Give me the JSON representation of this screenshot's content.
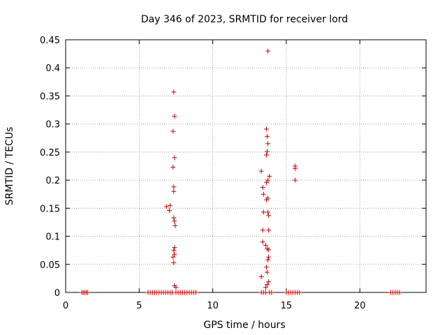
{
  "chart_data": {
    "type": "scatter",
    "title": "Day 346 of 2023, SRMTID for receiver lord",
    "xlabel": "GPS time / hours",
    "ylabel": "SRMTID / TECUs",
    "xlim": [
      0,
      24.5
    ],
    "ylim": [
      0,
      0.45
    ],
    "xticks": [
      {
        "value": 0,
        "label": "0"
      },
      {
        "value": 5,
        "label": "5"
      },
      {
        "value": 10,
        "label": "10"
      },
      {
        "value": 15,
        "label": "15"
      },
      {
        "value": 20,
        "label": "20"
      }
    ],
    "yticks": [
      {
        "value": 0,
        "label": "0"
      },
      {
        "value": 0.05,
        "label": "0.05"
      },
      {
        "value": 0.1,
        "label": "0.1"
      },
      {
        "value": 0.15,
        "label": "0.15"
      },
      {
        "value": 0.2,
        "label": "0.2"
      },
      {
        "value": 0.25,
        "label": "0.25"
      },
      {
        "value": 0.3,
        "label": "0.3"
      },
      {
        "value": 0.35,
        "label": "0.35"
      },
      {
        "value": 0.4,
        "label": "0.4"
      },
      {
        "value": 0.45,
        "label": "0.45"
      }
    ],
    "grid": true,
    "marker_color": "#cc0000",
    "marker": "plus",
    "series": [
      {
        "points": [
          [
            6.85,
            0.153
          ],
          [
            7.1,
            0.155
          ],
          [
            7.05,
            0.146
          ],
          [
            7.35,
            0.357
          ],
          [
            7.4,
            0.314
          ],
          [
            7.3,
            0.287
          ],
          [
            7.4,
            0.24
          ],
          [
            7.3,
            0.223
          ],
          [
            7.35,
            0.188
          ],
          [
            7.35,
            0.18
          ],
          [
            7.35,
            0.133
          ],
          [
            7.4,
            0.127
          ],
          [
            7.45,
            0.119
          ],
          [
            7.4,
            0.08
          ],
          [
            7.35,
            0.075
          ],
          [
            7.4,
            0.068
          ],
          [
            7.3,
            0.063
          ],
          [
            7.35,
            0.053
          ],
          [
            7.4,
            0.012
          ],
          [
            7.5,
            0.009
          ],
          [
            13.75,
            0.43
          ],
          [
            13.3,
            0.216
          ],
          [
            13.85,
            0.207
          ],
          [
            13.75,
            0.2
          ],
          [
            13.65,
            0.196
          ],
          [
            13.4,
            0.187
          ],
          [
            13.45,
            0.175
          ],
          [
            13.75,
            0.168
          ],
          [
            13.65,
            0.165
          ],
          [
            13.45,
            0.143
          ],
          [
            13.75,
            0.143
          ],
          [
            13.8,
            0.137
          ],
          [
            13.4,
            0.111
          ],
          [
            13.8,
            0.111
          ],
          [
            13.4,
            0.09
          ],
          [
            13.6,
            0.084
          ],
          [
            13.7,
            0.078
          ],
          [
            13.8,
            0.076
          ],
          [
            13.8,
            0.063
          ],
          [
            13.75,
            0.058
          ],
          [
            13.65,
            0.045
          ],
          [
            13.7,
            0.036
          ],
          [
            13.3,
            0.028
          ],
          [
            13.8,
            0.019
          ],
          [
            13.7,
            0.014
          ],
          [
            13.6,
            0.009
          ],
          [
            13.65,
            0.291
          ],
          [
            13.7,
            0.278
          ],
          [
            13.75,
            0.265
          ],
          [
            13.7,
            0.251
          ],
          [
            13.65,
            0.245
          ],
          [
            15.6,
            0.225
          ],
          [
            15.6,
            0.221
          ],
          [
            15.6,
            0.2
          ],
          [
            1.1,
            0
          ],
          [
            1.2,
            0
          ],
          [
            1.3,
            0
          ],
          [
            1.4,
            0
          ],
          [
            1.5,
            0
          ],
          [
            5.6,
            0
          ],
          [
            5.75,
            0
          ],
          [
            5.9,
            0
          ],
          [
            6.05,
            0
          ],
          [
            6.2,
            0
          ],
          [
            6.35,
            0
          ],
          [
            6.5,
            0
          ],
          [
            6.65,
            0
          ],
          [
            6.8,
            0
          ],
          [
            6.95,
            0
          ],
          [
            7.1,
            0
          ],
          [
            7.25,
            0
          ],
          [
            7.5,
            0
          ],
          [
            7.65,
            0
          ],
          [
            7.8,
            0
          ],
          [
            7.95,
            0
          ],
          [
            8.1,
            0
          ],
          [
            8.25,
            0
          ],
          [
            8.4,
            0
          ],
          [
            8.55,
            0
          ],
          [
            8.7,
            0
          ],
          [
            8.85,
            0
          ],
          [
            13.3,
            0
          ],
          [
            13.45,
            0
          ],
          [
            13.6,
            0
          ],
          [
            13.85,
            0
          ],
          [
            14.0,
            0
          ],
          [
            15.0,
            0
          ],
          [
            15.15,
            0
          ],
          [
            15.3,
            0
          ],
          [
            15.45,
            0
          ],
          [
            15.6,
            0
          ],
          [
            15.75,
            0
          ],
          [
            15.9,
            0
          ],
          [
            22.1,
            0
          ],
          [
            22.25,
            0
          ],
          [
            22.4,
            0
          ],
          [
            22.55,
            0
          ],
          [
            22.7,
            0
          ]
        ]
      }
    ]
  }
}
